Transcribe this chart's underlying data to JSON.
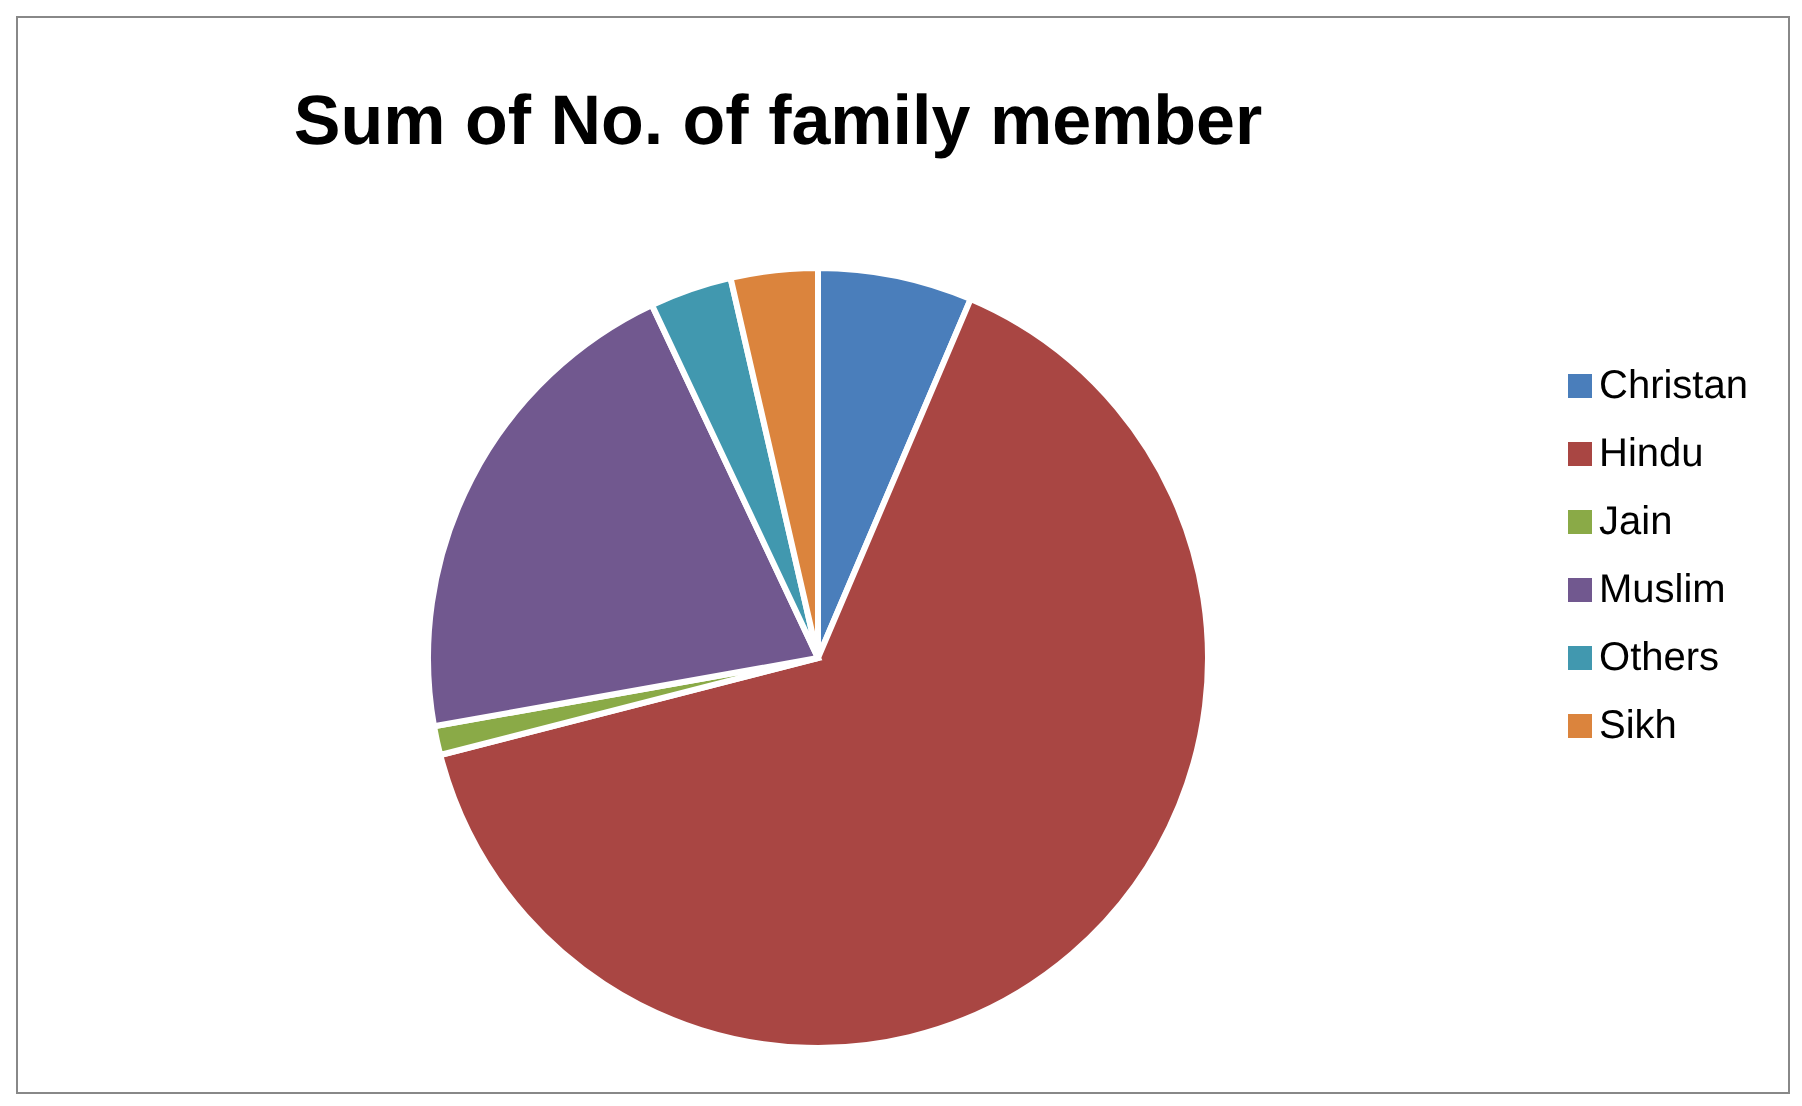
{
  "chart_data": {
    "type": "pie",
    "title": "Sum of No. of family member",
    "categories": [
      "Christan",
      "Hindu",
      "Jain",
      "Muslim",
      "Others",
      "Sikh"
    ],
    "values": [
      6.4,
      64.6,
      1.2,
      20.8,
      3.4,
      3.6
    ],
    "colors": [
      "#4a7ebb",
      "#a94643",
      "#8aaa47",
      "#71588f",
      "#4198af",
      "#db843d"
    ],
    "legend": "right"
  }
}
